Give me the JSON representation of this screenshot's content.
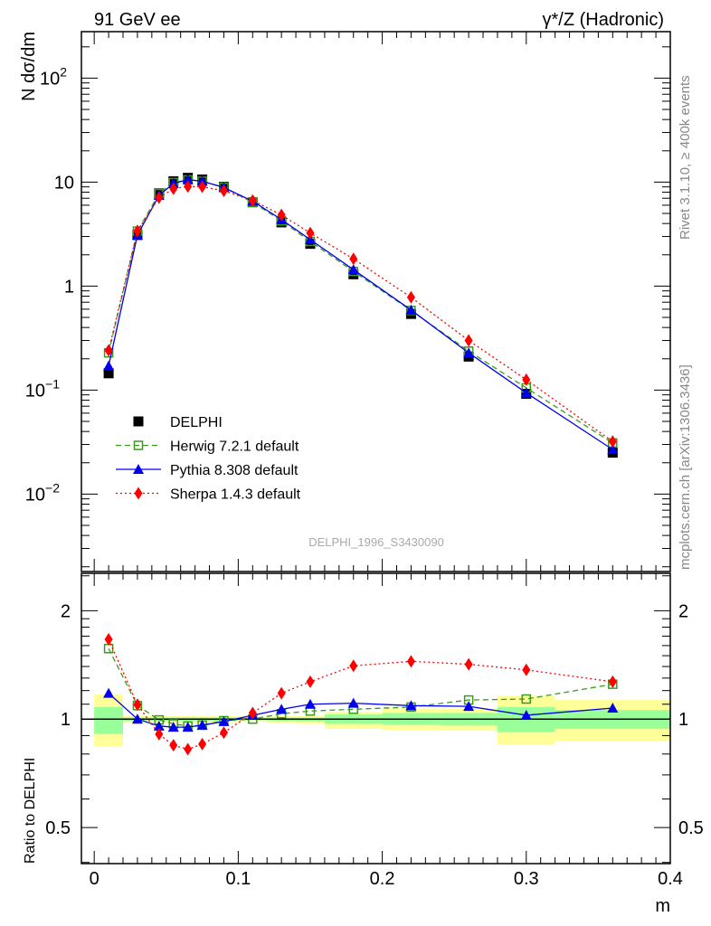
{
  "header": {
    "left": "91 GeV ee",
    "right": "γ*/Z (Hadronic)"
  },
  "side_labels": {
    "rivet": "Rivet 3.1.10, ≥ 400k events",
    "mcplots": "mcplots.cern.ch [arXiv:1306.3436]"
  },
  "watermark": "DELPHI_1996_S3430090",
  "chart_data": [
    {
      "type": "line",
      "title": "",
      "ylabel": "N dσ/dm",
      "xlabel": "m",
      "yscale": "log",
      "xlim": [
        -0.0089,
        0.4
      ],
      "ylim": [
        0.0018,
        280
      ],
      "ytick_labels": [
        {
          "v": 100,
          "t": "10",
          "e": "2"
        },
        {
          "v": 10,
          "t": "10",
          "e": ""
        },
        {
          "v": 1,
          "t": "1",
          "e": ""
        },
        {
          "v": 0.1,
          "t": "10",
          "e": "−1"
        },
        {
          "v": 0.01,
          "t": "10",
          "e": "−2"
        }
      ],
      "legend_position": "bottom-left",
      "x": [
        0.01,
        0.03,
        0.045,
        0.055,
        0.065,
        0.075,
        0.09,
        0.11,
        0.13,
        0.15,
        0.18,
        0.22,
        0.26,
        0.3,
        0.36
      ],
      "series": [
        {
          "name": "DELPHI",
          "color": "#000000",
          "style": "points",
          "marker": "square-filled",
          "values": [
            0.145,
            3.1,
            7.8,
            10.2,
            11.0,
            10.6,
            9.0,
            6.4,
            4.1,
            2.55,
            1.3,
            0.54,
            0.21,
            0.092,
            0.025
          ]
        },
        {
          "name": "Herwig 7.2.1 default",
          "color": "#3a9a1a",
          "style": "dashed",
          "marker": "square-open",
          "values": [
            0.228,
            3.38,
            7.76,
            9.9,
            10.5,
            10.2,
            8.9,
            6.4,
            4.24,
            2.69,
            1.385,
            0.583,
            0.237,
            0.105,
            0.031
          ]
        },
        {
          "name": "Pythia 8.308 default",
          "color": "#0000ee",
          "style": "solid",
          "marker": "triangle",
          "values": [
            0.171,
            3.1,
            7.46,
            9.69,
            10.56,
            10.2,
            8.87,
            6.56,
            4.37,
            2.8,
            1.44,
            0.589,
            0.228,
            0.094,
            0.0268
          ]
        },
        {
          "name": "Sherpa 1.4.3 default",
          "color": "#ff0000",
          "style": "dotted",
          "marker": "diamond",
          "values": [
            0.241,
            3.4,
            7.08,
            8.63,
            9.08,
            9.03,
            8.25,
            6.66,
            4.84,
            3.24,
            1.83,
            0.78,
            0.3,
            0.126,
            0.032
          ]
        }
      ]
    },
    {
      "type": "line",
      "ylabel": "Ratio to DELPHI",
      "xlabel": "m",
      "yscale": "log",
      "xlim": [
        -0.0089,
        0.4
      ],
      "ylim": [
        0.397,
        2.54
      ],
      "ytick_labels": [
        {
          "v": 2,
          "t": "2"
        },
        {
          "v": 1,
          "t": "1"
        },
        {
          "v": 0.5,
          "t": "0.5"
        }
      ],
      "xtick_labels": [
        {
          "v": 0,
          "t": "0"
        },
        {
          "v": 0.1,
          "t": "0.1"
        },
        {
          "v": 0.2,
          "t": "0.2"
        },
        {
          "v": 0.3,
          "t": "0.3"
        },
        {
          "v": 0.4,
          "t": "0.4"
        }
      ],
      "x": [
        0.01,
        0.03,
        0.045,
        0.055,
        0.065,
        0.075,
        0.09,
        0.11,
        0.13,
        0.15,
        0.18,
        0.22,
        0.26,
        0.3,
        0.36
      ],
      "bands": {
        "edges": [
          0,
          0.02,
          0.04,
          0.05,
          0.06,
          0.07,
          0.08,
          0.1,
          0.12,
          0.14,
          0.16,
          0.2,
          0.24,
          0.28,
          0.32,
          0.4
        ],
        "yellow": [
          [
            0.84,
            1.17
          ],
          [
            0.98,
            1.02
          ],
          [
            0.98,
            1.02
          ],
          [
            0.98,
            1.02
          ],
          [
            0.98,
            1.02
          ],
          [
            0.98,
            1.02
          ],
          [
            0.98,
            1.02
          ],
          [
            0.985,
            1.015
          ],
          [
            0.975,
            1.02
          ],
          [
            0.97,
            1.02
          ],
          [
            0.94,
            1.047
          ],
          [
            0.93,
            1.07
          ],
          [
            0.93,
            1.07
          ],
          [
            0.85,
            1.16
          ],
          [
            0.87,
            1.13
          ]
        ],
        "green": [
          [
            0.91,
            1.08
          ],
          [
            0.99,
            1.01
          ],
          [
            0.99,
            1.01
          ],
          [
            0.99,
            1.01
          ],
          [
            0.99,
            1.01
          ],
          [
            0.99,
            1.01
          ],
          [
            0.99,
            1.01
          ],
          [
            0.993,
            1.008
          ],
          [
            0.99,
            1.01
          ],
          [
            0.985,
            1.01
          ],
          [
            0.97,
            1.03
          ],
          [
            0.965,
            1.04
          ],
          [
            0.96,
            1.04
          ],
          [
            0.92,
            1.08
          ],
          [
            0.94,
            1.06
          ]
        ]
      },
      "series": [
        {
          "name": "Herwig 7.2.1 default",
          "color": "#3a9a1a",
          "style": "dashed",
          "marker": "square-open",
          "values": [
            1.57,
            1.09,
            0.995,
            0.97,
            0.957,
            0.962,
            0.99,
            1.0,
            1.035,
            1.053,
            1.065,
            1.08,
            1.13,
            1.137,
            1.25
          ]
        },
        {
          "name": "Pythia 8.308 default",
          "color": "#0000ee",
          "style": "solid",
          "marker": "triangle",
          "values": [
            1.18,
            1.0,
            0.957,
            0.95,
            0.95,
            0.962,
            0.985,
            1.025,
            1.065,
            1.1,
            1.107,
            1.09,
            1.085,
            1.025,
            1.073
          ]
        },
        {
          "name": "Sherpa 1.4.3 default",
          "color": "#ff0000",
          "style": "dotted",
          "marker": "diamond",
          "values": [
            1.665,
            1.097,
            0.908,
            0.846,
            0.825,
            0.852,
            0.917,
            1.04,
            1.18,
            1.27,
            1.406,
            1.447,
            1.42,
            1.37,
            1.27
          ]
        }
      ]
    }
  ]
}
